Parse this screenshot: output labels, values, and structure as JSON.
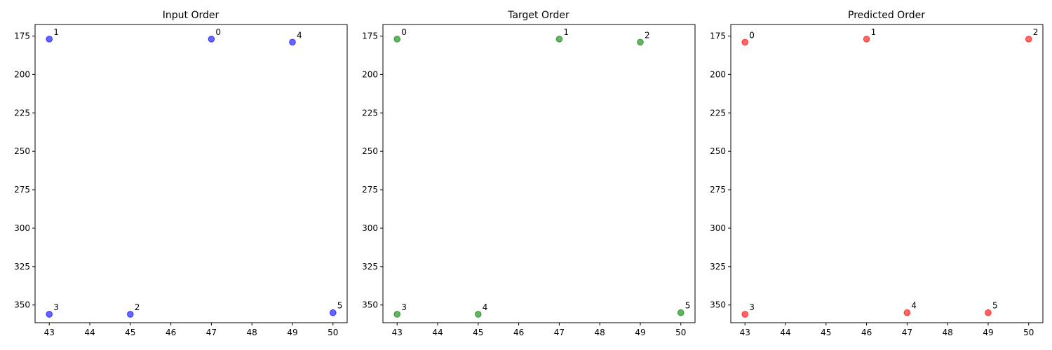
{
  "chart_data": [
    {
      "type": "scatter",
      "title": "Input Order",
      "color": "#0000ff",
      "xlim": [
        42.65,
        50.35
      ],
      "ylim": [
        361.5,
        167.5
      ],
      "y_inverted": true,
      "xticks": [
        43,
        44,
        45,
        46,
        47,
        48,
        49,
        50
      ],
      "yticks": [
        175,
        200,
        225,
        250,
        275,
        300,
        325,
        350
      ],
      "points": [
        {
          "label": "0",
          "x": 47,
          "y": 177
        },
        {
          "label": "1",
          "x": 43,
          "y": 177
        },
        {
          "label": "2",
          "x": 45,
          "y": 356
        },
        {
          "label": "3",
          "x": 43,
          "y": 356
        },
        {
          "label": "4",
          "x": 49,
          "y": 179
        },
        {
          "label": "5",
          "x": 50,
          "y": 355
        }
      ]
    },
    {
      "type": "scatter",
      "title": "Target Order",
      "color": "#008000",
      "xlim": [
        42.65,
        50.35
      ],
      "ylim": [
        361.5,
        167.5
      ],
      "y_inverted": true,
      "xticks": [
        43,
        44,
        45,
        46,
        47,
        48,
        49,
        50
      ],
      "yticks": [
        175,
        200,
        225,
        250,
        275,
        300,
        325,
        350
      ],
      "points": [
        {
          "label": "0",
          "x": 43,
          "y": 177
        },
        {
          "label": "1",
          "x": 47,
          "y": 177
        },
        {
          "label": "2",
          "x": 49,
          "y": 179
        },
        {
          "label": "3",
          "x": 43,
          "y": 356
        },
        {
          "label": "4",
          "x": 45,
          "y": 356
        },
        {
          "label": "5",
          "x": 50,
          "y": 355
        }
      ]
    },
    {
      "type": "scatter",
      "title": "Predicted Order",
      "color": "#ff0000",
      "xlim": [
        42.65,
        50.35
      ],
      "ylim": [
        361.5,
        167.5
      ],
      "y_inverted": true,
      "xticks": [
        43,
        44,
        45,
        46,
        47,
        48,
        49,
        50
      ],
      "yticks": [
        175,
        200,
        225,
        250,
        275,
        300,
        325,
        350
      ],
      "points": [
        {
          "label": "0",
          "x": 43,
          "y": 179
        },
        {
          "label": "1",
          "x": 46,
          "y": 177
        },
        {
          "label": "2",
          "x": 50,
          "y": 177
        },
        {
          "label": "3",
          "x": 43,
          "y": 356
        },
        {
          "label": "4",
          "x": 47,
          "y": 355
        },
        {
          "label": "5",
          "x": 49,
          "y": 355
        }
      ]
    }
  ]
}
